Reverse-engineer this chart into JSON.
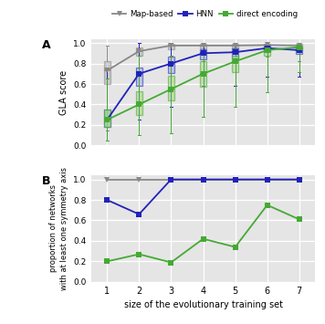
{
  "x": [
    1,
    2,
    3,
    4,
    5,
    6,
    7
  ],
  "panel_A": {
    "map_median": [
      0.73,
      0.92,
      0.975,
      0.975,
      0.975,
      0.98,
      0.975
    ],
    "map_q1": [
      0.6,
      0.88,
      0.94,
      0.95,
      0.95,
      0.965,
      0.955
    ],
    "map_q3": [
      0.82,
      0.955,
      0.99,
      0.99,
      0.99,
      0.995,
      0.99
    ],
    "map_whishi": [
      0.97,
      1.0,
      1.0,
      1.0,
      1.0,
      1.0,
      1.0
    ],
    "map_whislo": [
      0.15,
      0.7,
      0.78,
      0.82,
      0.82,
      0.87,
      0.82
    ],
    "hnn_median": [
      0.25,
      0.7,
      0.8,
      0.9,
      0.91,
      0.95,
      0.93
    ],
    "hnn_q1": [
      0.18,
      0.58,
      0.71,
      0.84,
      0.85,
      0.91,
      0.89
    ],
    "hnn_q3": [
      0.35,
      0.76,
      0.87,
      0.94,
      0.95,
      0.97,
      0.96
    ],
    "hnn_whishi": [
      0.75,
      1.0,
      1.0,
      1.0,
      1.0,
      1.0,
      1.0
    ],
    "hnn_whislo": [
      0.05,
      0.25,
      0.38,
      0.58,
      0.58,
      0.67,
      0.67
    ],
    "de_median": [
      0.25,
      0.4,
      0.55,
      0.7,
      0.82,
      0.93,
      0.96
    ],
    "de_q1": [
      0.18,
      0.3,
      0.44,
      0.57,
      0.72,
      0.88,
      0.93
    ],
    "de_q3": [
      0.35,
      0.53,
      0.68,
      0.82,
      0.88,
      0.945,
      0.975
    ],
    "de_whishi": [
      0.65,
      0.88,
      0.88,
      0.9,
      0.96,
      1.0,
      1.0
    ],
    "de_whislo": [
      0.05,
      0.1,
      0.12,
      0.28,
      0.38,
      0.52,
      0.72
    ]
  },
  "panel_B": {
    "map_vals": [
      1.0,
      1.0,
      1.0,
      1.0,
      1.0,
      1.0,
      1.0
    ],
    "hnn_vals": [
      0.8,
      0.66,
      1.0,
      1.0,
      1.0,
      1.0,
      1.0
    ],
    "de_vals": [
      0.2,
      0.27,
      0.19,
      0.42,
      0.34,
      0.75,
      0.61
    ]
  },
  "map_color": "#888888",
  "hnn_color": "#2222bb",
  "de_color": "#44aa33",
  "map_box_color": "#b0b0b0",
  "hnn_box_color": "#99aade",
  "de_box_color": "#99dd66",
  "bg_color": "#e5e5e5",
  "ylabel_A": "GLA score",
  "ylabel_B": "proportion of networks\nwith at least one symmetry axis",
  "xlabel": "size of the evolutionary training set",
  "legend_labels": [
    "Map-based",
    "HNN",
    "direct encoding"
  ],
  "ylim_A": [
    0.0,
    1.0
  ],
  "ylim_B": [
    0.0,
    1.0
  ],
  "yticks_A": [
    0.0,
    0.2,
    0.4,
    0.6,
    0.8,
    1.0
  ],
  "yticks_B": [
    0.0,
    0.2,
    0.4,
    0.6,
    0.8,
    1.0
  ]
}
